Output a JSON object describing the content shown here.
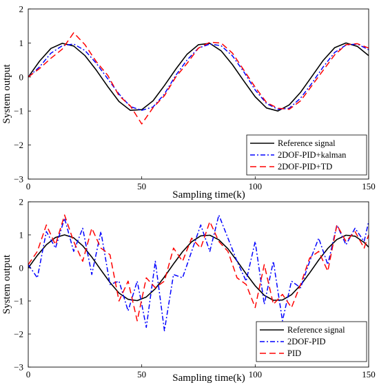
{
  "chart_data": [
    {
      "type": "line",
      "xlabel": "Sampling time(k)",
      "ylabel": "System output",
      "xlim": [
        0,
        150
      ],
      "ylim": [
        -3,
        2
      ],
      "xticks": [
        "0",
        "50",
        "100",
        "150"
      ],
      "yticks": [
        "2",
        "1",
        "0",
        "−1",
        "−2",
        "−3"
      ],
      "legend_position": "bottom-right",
      "x": [
        0,
        5,
        10,
        15,
        20,
        25,
        30,
        35,
        40,
        45,
        50,
        55,
        60,
        65,
        70,
        75,
        80,
        85,
        90,
        95,
        100,
        105,
        110,
        115,
        120,
        125,
        130,
        135,
        140,
        145,
        150
      ],
      "series": [
        {
          "name": "Reference signal",
          "color": "#000000",
          "style": "solid",
          "values": [
            0,
            0.47,
            0.84,
            0.99,
            0.91,
            0.63,
            0.2,
            -0.28,
            -0.72,
            -0.98,
            -0.96,
            -0.7,
            -0.25,
            0.23,
            0.67,
            0.95,
            0.99,
            0.77,
            0.36,
            -0.12,
            -0.58,
            -0.91,
            -1.0,
            -0.82,
            -0.45,
            0.02,
            0.49,
            0.86,
            1.0,
            0.9,
            0.63
          ]
        },
        {
          "name": "2DOF-PID+kalman",
          "color": "#0000ff",
          "style": "dashdot",
          "values": [
            0.0,
            0.3,
            0.7,
            0.92,
            0.97,
            0.78,
            0.4,
            -0.05,
            -0.5,
            -0.87,
            -0.98,
            -0.88,
            -0.5,
            0.05,
            0.5,
            0.85,
            0.97,
            0.92,
            0.62,
            0.15,
            -0.38,
            -0.78,
            -0.95,
            -0.92,
            -0.62,
            -0.18,
            0.3,
            0.72,
            0.94,
            0.97,
            0.8
          ]
        },
        {
          "name": "2DOF-PID+TD",
          "color": "#ff0000",
          "style": "dashed",
          "values": [
            0.0,
            0.25,
            0.55,
            0.82,
            1.3,
            0.95,
            0.45,
            0.05,
            -0.55,
            -0.85,
            -1.38,
            -0.9,
            -0.55,
            0.0,
            0.4,
            0.85,
            1.02,
            1.0,
            0.7,
            0.2,
            -0.3,
            -0.75,
            -0.92,
            -0.95,
            -0.7,
            -0.25,
            0.2,
            0.65,
            0.95,
            0.98,
            0.85
          ]
        }
      ]
    },
    {
      "type": "line",
      "xlabel": "Sampling time(k)",
      "ylabel": "System output",
      "xlim": [
        0,
        150
      ],
      "ylim": [
        -3,
        2
      ],
      "xticks": [
        "0",
        "50",
        "100",
        "150"
      ],
      "yticks": [
        "2",
        "1",
        "0",
        "−1",
        "−2",
        "−3"
      ],
      "legend_position": "bottom-right",
      "x": [
        0,
        4,
        8,
        12,
        16,
        20,
        24,
        28,
        32,
        36,
        40,
        44,
        48,
        52,
        56,
        60,
        64,
        68,
        72,
        76,
        80,
        84,
        88,
        92,
        96,
        100,
        104,
        108,
        112,
        116,
        120,
        124,
        128,
        132,
        136,
        140,
        144,
        148,
        150
      ],
      "series": [
        {
          "name": "Reference signal",
          "color": "#000000",
          "style": "solid",
          "values": [
            0,
            0.38,
            0.7,
            0.92,
            1.0,
            0.91,
            0.67,
            0.33,
            -0.06,
            -0.44,
            -0.76,
            -0.95,
            -0.99,
            -0.88,
            -0.63,
            -0.27,
            0.12,
            0.49,
            0.79,
            0.97,
            0.99,
            0.85,
            0.58,
            0.21,
            -0.18,
            -0.54,
            -0.83,
            -0.98,
            -0.97,
            -0.81,
            -0.52,
            -0.15,
            0.24,
            0.59,
            0.86,
            0.99,
            0.96,
            0.77,
            0.63
          ]
        },
        {
          "name": "2DOF-PID",
          "color": "#0000ff",
          "style": "dashdot",
          "values": [
            0.1,
            -0.3,
            1.1,
            0.6,
            1.5,
            0.5,
            1.2,
            -0.2,
            1.1,
            -0.5,
            -0.4,
            -1.3,
            -0.4,
            -1.8,
            0.2,
            -1.9,
            -0.2,
            -0.3,
            0.5,
            1.3,
            0.5,
            1.6,
            0.9,
            0.2,
            -0.4,
            0.8,
            -1.1,
            0.2,
            -1.6,
            -0.4,
            -0.6,
            0.2,
            0.9,
            0.1,
            1.3,
            0.7,
            1.2,
            0.8,
            1.4
          ]
        },
        {
          "name": "PID",
          "color": "#ff0000",
          "style": "dashed",
          "values": [
            0.1,
            0.5,
            1.3,
            0.7,
            1.6,
            0.8,
            0.2,
            1.2,
            0.6,
            0.4,
            -1.0,
            -0.4,
            -1.6,
            -0.3,
            -0.6,
            -0.4,
            0.6,
            0.2,
            0.9,
            0.6,
            1.4,
            0.8,
            0.5,
            -0.3,
            -0.5,
            -1.2,
            0.1,
            -1.1,
            -0.8,
            -1.2,
            -0.5,
            0.3,
            0.5,
            -0.1,
            1.3,
            0.8,
            1.1,
            0.6,
            1.0
          ]
        }
      ]
    }
  ]
}
